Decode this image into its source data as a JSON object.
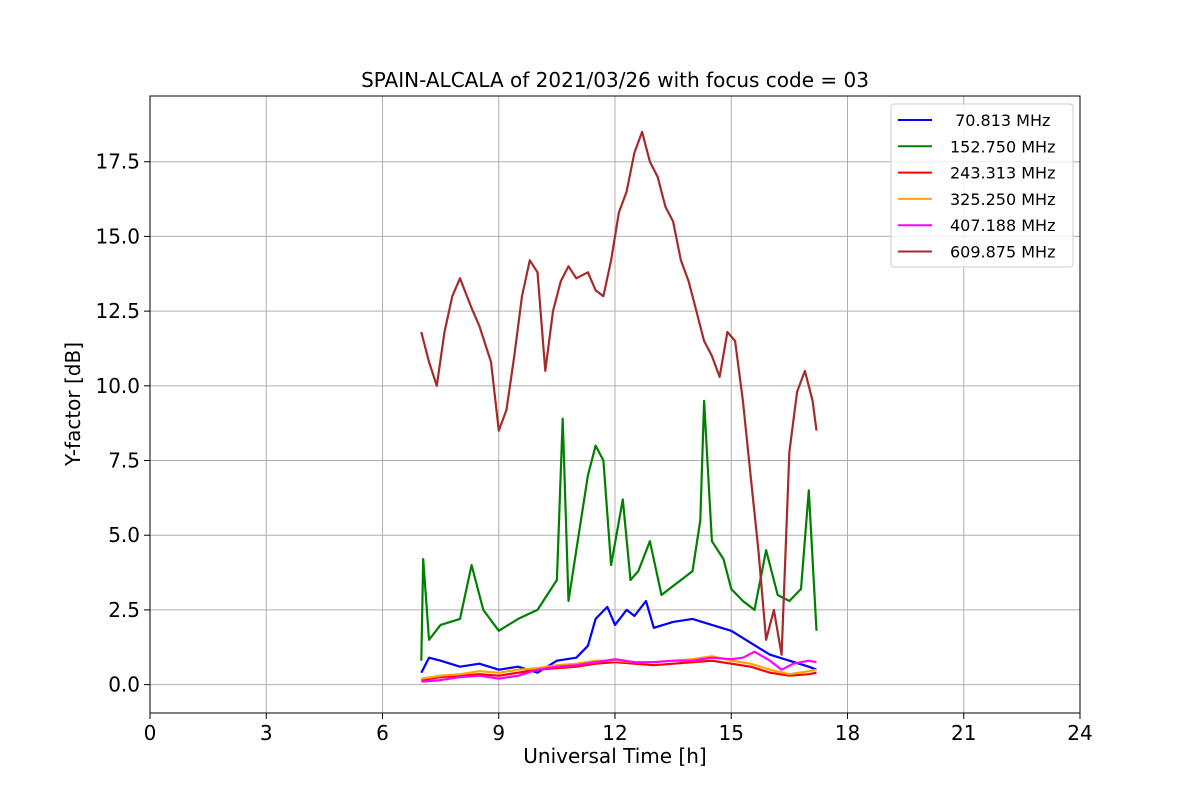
{
  "chart_data": {
    "type": "line",
    "title": "SPAIN-ALCALA of 2021/03/26 with focus code = 03",
    "xlabel": "Universal Time [h]",
    "ylabel": "Y-factor [dB]",
    "xlim": [
      0,
      24
    ],
    "ylim": [
      -0.95,
      19.7
    ],
    "xticks": [
      0,
      3,
      6,
      9,
      12,
      15,
      18,
      21,
      24
    ],
    "xtick_labels": [
      "0",
      "3",
      "6",
      "9",
      "12",
      "15",
      "18",
      "21",
      "24"
    ],
    "yticks": [
      0,
      2.5,
      5,
      7.5,
      10,
      12.5,
      15,
      17.5
    ],
    "ytick_labels": [
      "0.0",
      "2.5",
      "5.0",
      "7.5",
      "10.0",
      "12.5",
      "15.0",
      "17.5"
    ],
    "grid": true,
    "legend_position": "top-right",
    "series": [
      {
        "name": " 70.813 MHz",
        "color": "#0000ff",
        "x": [
          7.0,
          7.2,
          7.5,
          8.0,
          8.5,
          9.0,
          9.5,
          10.0,
          10.5,
          11.0,
          11.3,
          11.5,
          11.8,
          12.0,
          12.3,
          12.5,
          12.8,
          13.0,
          13.5,
          14.0,
          14.5,
          15.0,
          15.5,
          16.0,
          16.5,
          17.0,
          17.2
        ],
        "y": [
          0.4,
          0.9,
          0.8,
          0.6,
          0.7,
          0.5,
          0.6,
          0.4,
          0.8,
          0.9,
          1.3,
          2.2,
          2.6,
          2.0,
          2.5,
          2.3,
          2.8,
          1.9,
          2.1,
          2.2,
          2.0,
          1.8,
          1.4,
          1.0,
          0.8,
          0.6,
          0.5
        ]
      },
      {
        "name": "152.750 MHz",
        "color": "#008000",
        "x": [
          7.0,
          7.05,
          7.2,
          7.5,
          8.0,
          8.3,
          8.6,
          9.0,
          9.5,
          10.0,
          10.5,
          10.65,
          10.8,
          11.0,
          11.3,
          11.5,
          11.7,
          11.9,
          12.2,
          12.4,
          12.6,
          12.9,
          13.2,
          13.5,
          13.8,
          14.0,
          14.2,
          14.3,
          14.5,
          14.8,
          15.0,
          15.3,
          15.6,
          15.9,
          16.2,
          16.5,
          16.8,
          17.0,
          17.2
        ],
        "y": [
          0.8,
          4.2,
          1.5,
          2.0,
          2.2,
          4.0,
          2.5,
          1.8,
          2.2,
          2.5,
          3.5,
          8.9,
          2.8,
          4.5,
          7.0,
          8.0,
          7.5,
          4.0,
          6.2,
          3.5,
          3.8,
          4.8,
          3.0,
          3.3,
          3.6,
          3.8,
          5.5,
          9.5,
          4.8,
          4.2,
          3.2,
          2.8,
          2.5,
          4.5,
          3.0,
          2.8,
          3.2,
          6.5,
          1.8
        ]
      },
      {
        "name": "243.313 MHz",
        "color": "#ff0000",
        "x": [
          7.0,
          7.5,
          8.0,
          8.5,
          9.0,
          9.5,
          10.0,
          10.5,
          11.0,
          11.5,
          12.0,
          12.5,
          13.0,
          13.5,
          14.0,
          14.5,
          15.0,
          15.5,
          16.0,
          16.5,
          17.0,
          17.2
        ],
        "y": [
          0.15,
          0.25,
          0.3,
          0.35,
          0.3,
          0.4,
          0.5,
          0.55,
          0.6,
          0.7,
          0.75,
          0.7,
          0.65,
          0.7,
          0.75,
          0.8,
          0.7,
          0.6,
          0.4,
          0.3,
          0.35,
          0.4
        ]
      },
      {
        "name": "325.250 MHz",
        "color": "#ffa500",
        "x": [
          7.0,
          7.5,
          8.0,
          8.5,
          9.0,
          9.5,
          10.0,
          10.5,
          11.0,
          11.5,
          12.0,
          12.5,
          13.0,
          13.5,
          14.0,
          14.5,
          15.0,
          15.5,
          16.0,
          16.5,
          17.0,
          17.2
        ],
        "y": [
          0.2,
          0.3,
          0.35,
          0.45,
          0.4,
          0.5,
          0.55,
          0.65,
          0.7,
          0.8,
          0.8,
          0.75,
          0.75,
          0.8,
          0.85,
          0.95,
          0.8,
          0.7,
          0.5,
          0.35,
          0.45,
          0.5
        ]
      },
      {
        "name": "407.188 MHz",
        "color": "#ff00ff",
        "x": [
          7.0,
          7.5,
          8.0,
          8.5,
          9.0,
          9.5,
          10.0,
          10.5,
          11.0,
          11.5,
          12.0,
          12.5,
          13.0,
          13.5,
          14.0,
          14.5,
          15.0,
          15.3,
          15.6,
          16.0,
          16.3,
          16.6,
          17.0,
          17.2
        ],
        "y": [
          0.1,
          0.15,
          0.25,
          0.3,
          0.2,
          0.3,
          0.5,
          0.6,
          0.65,
          0.75,
          0.85,
          0.75,
          0.75,
          0.8,
          0.8,
          0.9,
          0.85,
          0.9,
          1.1,
          0.8,
          0.5,
          0.7,
          0.8,
          0.75
        ]
      },
      {
        "name": "609.875 MHz",
        "color": "#a52a2a",
        "x": [
          7.0,
          7.2,
          7.4,
          7.6,
          7.8,
          8.0,
          8.3,
          8.5,
          8.8,
          9.0,
          9.2,
          9.4,
          9.6,
          9.8,
          10.0,
          10.2,
          10.4,
          10.6,
          10.8,
          11.0,
          11.3,
          11.5,
          11.7,
          11.9,
          12.1,
          12.3,
          12.5,
          12.7,
          12.9,
          13.1,
          13.3,
          13.5,
          13.7,
          13.9,
          14.1,
          14.3,
          14.5,
          14.7,
          14.9,
          15.1,
          15.3,
          15.5,
          15.7,
          15.9,
          16.1,
          16.3,
          16.5,
          16.7,
          16.9,
          17.1,
          17.2
        ],
        "y": [
          11.8,
          10.8,
          10.0,
          11.8,
          13.0,
          13.6,
          12.6,
          12.0,
          10.8,
          8.5,
          9.2,
          11.0,
          13.0,
          14.2,
          13.8,
          10.5,
          12.5,
          13.5,
          14.0,
          13.6,
          13.8,
          13.2,
          13.0,
          14.2,
          15.8,
          16.5,
          17.8,
          18.5,
          17.5,
          17.0,
          16.0,
          15.5,
          14.2,
          13.5,
          12.5,
          11.5,
          11.0,
          10.3,
          11.8,
          11.5,
          9.5,
          7.0,
          4.5,
          1.5,
          2.5,
          1.0,
          7.8,
          9.8,
          10.5,
          9.5,
          8.5
        ]
      }
    ]
  }
}
